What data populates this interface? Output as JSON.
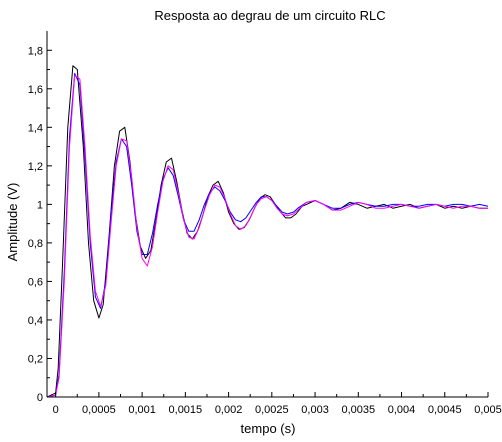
{
  "chart_data": {
    "type": "line",
    "title": "Resposta ao degrau de um circuito RLC",
    "xlabel": "tempo (s)",
    "ylabel": "Amplitude (V)",
    "xlim": [
      -0.0001,
      0.005
    ],
    "ylim": [
      0,
      1.9
    ],
    "grid": false,
    "legend": "none",
    "x_ticks": [
      {
        "v": 0,
        "label": "0"
      },
      {
        "v": 0.0005,
        "label": "0,0005"
      },
      {
        "v": 0.001,
        "label": "0,001"
      },
      {
        "v": 0.0015,
        "label": "0,0015"
      },
      {
        "v": 0.002,
        "label": "0,002"
      },
      {
        "v": 0.0025,
        "label": "0,0025"
      },
      {
        "v": 0.003,
        "label": "0,003"
      },
      {
        "v": 0.0035,
        "label": "0,0035"
      },
      {
        "v": 0.004,
        "label": "0,004"
      },
      {
        "v": 0.0045,
        "label": "0,0045"
      },
      {
        "v": 0.005,
        "label": "0,005"
      }
    ],
    "y_ticks": [
      {
        "v": 0,
        "label": "0"
      },
      {
        "v": 0.2,
        "label": "0,2"
      },
      {
        "v": 0.4,
        "label": "0,4"
      },
      {
        "v": 0.6,
        "label": "0,6"
      },
      {
        "v": 0.8,
        "label": "0,8"
      },
      {
        "v": 1.0,
        "label": "1"
      },
      {
        "v": 1.2,
        "label": "1,2"
      },
      {
        "v": 1.4,
        "label": "1,4"
      },
      {
        "v": 1.6,
        "label": "1,6"
      },
      {
        "v": 1.8,
        "label": "1,8"
      }
    ],
    "series": [
      {
        "color": "#000000",
        "x": [
          -0.0001,
          0.0,
          3e-05,
          8e-05,
          0.00014,
          0.0002,
          0.00025,
          0.00032,
          0.00038,
          0.00044,
          0.0005,
          0.00055,
          0.00062,
          0.00068,
          0.00074,
          0.0008,
          0.00086,
          0.00092,
          0.00098,
          0.00104,
          0.0011,
          0.00116,
          0.00122,
          0.00128,
          0.00134,
          0.0014,
          0.00146,
          0.00152,
          0.00158,
          0.00164,
          0.0017,
          0.00176,
          0.00182,
          0.00188,
          0.00194,
          0.002,
          0.00206,
          0.00212,
          0.00218,
          0.00224,
          0.0023,
          0.00236,
          0.00242,
          0.00248,
          0.00254,
          0.0026,
          0.00266,
          0.00272,
          0.00278,
          0.00285,
          0.0029,
          0.003,
          0.0031,
          0.0032,
          0.0033,
          0.0034,
          0.0035,
          0.0036,
          0.0037,
          0.0038,
          0.0039,
          0.004,
          0.0041,
          0.0042,
          0.0043,
          0.0044,
          0.0045,
          0.0046,
          0.0047,
          0.0048,
          0.0049,
          0.005
        ],
        "y": [
          0.0,
          0.02,
          0.15,
          0.7,
          1.4,
          1.72,
          1.7,
          1.3,
          0.8,
          0.5,
          0.41,
          0.48,
          0.85,
          1.2,
          1.38,
          1.4,
          1.22,
          0.95,
          0.78,
          0.72,
          0.76,
          0.92,
          1.1,
          1.22,
          1.24,
          1.12,
          0.97,
          0.85,
          0.82,
          0.86,
          0.94,
          1.04,
          1.1,
          1.12,
          1.06,
          0.96,
          0.9,
          0.87,
          0.88,
          0.92,
          0.98,
          1.03,
          1.05,
          1.04,
          1.0,
          0.96,
          0.93,
          0.93,
          0.95,
          0.99,
          1.0,
          1.02,
          1.0,
          0.97,
          0.98,
          1.01,
          1.0,
          0.98,
          0.99,
          1.0,
          0.98,
          0.99,
          1.0,
          0.98,
          0.99,
          1.0,
          0.98,
          0.99,
          0.98,
          0.99,
          0.98,
          0.98
        ]
      },
      {
        "color": "#0000ff",
        "x": [
          -0.0001,
          0.0,
          4e-05,
          0.0001,
          0.00016,
          0.00022,
          0.00028,
          0.00034,
          0.0004,
          0.00046,
          0.00052,
          0.00058,
          0.00064,
          0.0007,
          0.00076,
          0.00082,
          0.00088,
          0.00094,
          0.001,
          0.00106,
          0.00112,
          0.00118,
          0.00124,
          0.0013,
          0.00136,
          0.00142,
          0.00148,
          0.00154,
          0.0016,
          0.00166,
          0.00172,
          0.00178,
          0.00184,
          0.0019,
          0.00196,
          0.00202,
          0.00208,
          0.00214,
          0.0022,
          0.00226,
          0.00232,
          0.00238,
          0.00244,
          0.0025,
          0.00256,
          0.00262,
          0.00268,
          0.00275,
          0.0028,
          0.0029,
          0.003,
          0.0031,
          0.0032,
          0.0033,
          0.0034,
          0.0035,
          0.0036,
          0.0037,
          0.0038,
          0.0039,
          0.004,
          0.0041,
          0.0042,
          0.0043,
          0.0044,
          0.0045,
          0.0046,
          0.0047,
          0.0048,
          0.0049,
          0.005
        ],
        "y": [
          0.0,
          0.01,
          0.12,
          0.65,
          1.35,
          1.68,
          1.62,
          1.25,
          0.8,
          0.52,
          0.46,
          0.6,
          0.95,
          1.22,
          1.34,
          1.3,
          1.1,
          0.86,
          0.74,
          0.74,
          0.85,
          1.0,
          1.13,
          1.19,
          1.15,
          1.04,
          0.92,
          0.86,
          0.86,
          0.92,
          1.0,
          1.06,
          1.09,
          1.07,
          1.02,
          0.96,
          0.92,
          0.91,
          0.93,
          0.97,
          1.01,
          1.04,
          1.04,
          1.02,
          0.99,
          0.96,
          0.95,
          0.96,
          0.98,
          1.01,
          1.02,
          1.0,
          0.98,
          0.98,
          1.0,
          1.01,
          1.0,
          0.99,
          0.99,
          1.0,
          1.0,
          0.99,
          0.99,
          1.0,
          1.0,
          0.99,
          1.0,
          1.0,
          0.99,
          1.0,
          0.99
        ]
      },
      {
        "color": "#ff00ff",
        "x": [
          -0.0001,
          0.0,
          4e-05,
          0.0001,
          0.00016,
          0.00022,
          0.00028,
          0.00034,
          0.0004,
          0.00046,
          0.00052,
          0.00058,
          0.00064,
          0.0007,
          0.00076,
          0.00082,
          0.00088,
          0.00094,
          0.001,
          0.00106,
          0.00112,
          0.00118,
          0.00124,
          0.0013,
          0.00136,
          0.00142,
          0.00148,
          0.00154,
          0.0016,
          0.00166,
          0.00172,
          0.00178,
          0.00184,
          0.0019,
          0.00196,
          0.00202,
          0.00208,
          0.00214,
          0.0022,
          0.00226,
          0.00232,
          0.00238,
          0.00244,
          0.0025,
          0.00256,
          0.00262,
          0.00268,
          0.00275,
          0.0028,
          0.0029,
          0.003,
          0.0031,
          0.0032,
          0.0033,
          0.0034,
          0.0035,
          0.0036,
          0.0037,
          0.0038,
          0.0039,
          0.004,
          0.0041,
          0.0042,
          0.0043,
          0.0044,
          0.0045,
          0.0046,
          0.0047,
          0.0048,
          0.0049,
          0.005
        ],
        "y": [
          0.0,
          0.01,
          0.1,
          0.6,
          1.3,
          1.67,
          1.65,
          1.3,
          0.84,
          0.55,
          0.47,
          0.58,
          0.9,
          1.2,
          1.34,
          1.33,
          1.14,
          0.88,
          0.72,
          0.68,
          0.78,
          0.96,
          1.12,
          1.2,
          1.18,
          1.06,
          0.92,
          0.83,
          0.82,
          0.88,
          0.97,
          1.05,
          1.1,
          1.09,
          1.03,
          0.95,
          0.89,
          0.87,
          0.89,
          0.94,
          1.0,
          1.03,
          1.04,
          1.02,
          0.98,
          0.95,
          0.94,
          0.95,
          0.97,
          1.01,
          1.02,
          1.0,
          0.97,
          0.97,
          0.99,
          1.01,
          1.0,
          0.98,
          0.98,
          0.99,
          1.0,
          0.99,
          0.98,
          0.99,
          1.0,
          0.99,
          0.98,
          0.99,
          0.99,
          0.98,
          0.98
        ]
      }
    ]
  }
}
